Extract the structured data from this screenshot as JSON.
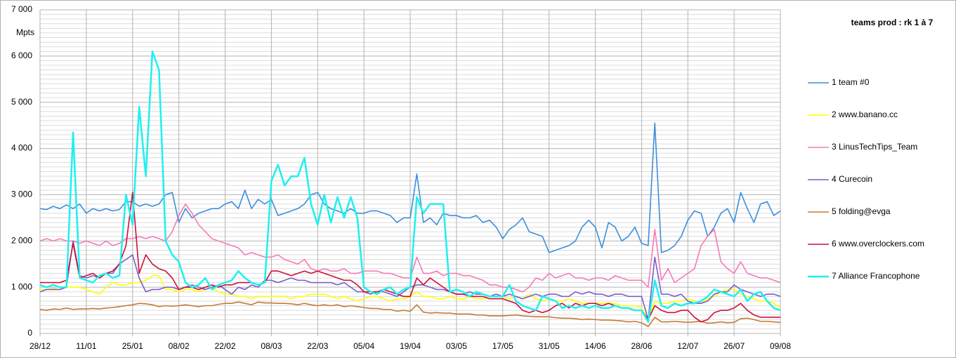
{
  "chart_data": {
    "type": "line",
    "title": "teams prod :  rk 1 à 7",
    "y_label": "Mpts",
    "categories": [
      "28/12",
      null,
      null,
      null,
      null,
      null,
      null,
      "11/01",
      null,
      null,
      null,
      null,
      null,
      null,
      "25/01",
      null,
      null,
      null,
      null,
      null,
      null,
      "08/02",
      null,
      null,
      null,
      null,
      null,
      null,
      "22/02",
      null,
      null,
      null,
      null,
      null,
      null,
      "08/03",
      null,
      null,
      null,
      null,
      null,
      null,
      "22/03",
      null,
      null,
      null,
      null,
      null,
      null,
      "05/04",
      null,
      null,
      null,
      null,
      null,
      null,
      "19/04",
      null,
      null,
      null,
      null,
      null,
      null,
      "03/05",
      null,
      null,
      null,
      null,
      null,
      null,
      "17/05",
      null,
      null,
      null,
      null,
      null,
      null,
      "31/05",
      null,
      null,
      null,
      null,
      null,
      null,
      "14/06",
      null,
      null,
      null,
      null,
      null,
      null,
      "28/06",
      null,
      null,
      null,
      null,
      null,
      null,
      "12/07",
      null,
      null,
      null,
      null,
      null,
      null,
      "26/07",
      null,
      null,
      null,
      null,
      null,
      null,
      "09/08"
    ],
    "ylim": [
      0,
      7000
    ],
    "yticks": [
      0,
      {
        "value": 1000,
        "label": "1 000"
      },
      {
        "value": 2000,
        "label": "2 000"
      },
      {
        "value": 3000,
        "label": "3 000"
      },
      {
        "value": 4000,
        "label": "4 000"
      },
      {
        "value": 5000,
        "label": "5 000"
      },
      {
        "value": 6000,
        "label": "6 000"
      },
      {
        "value": 7000,
        "label": "7 000"
      }
    ],
    "grid": true,
    "legend": "right",
    "series": [
      {
        "name": "1 team #0",
        "color": "#3c8fdc",
        "values": [
          2700,
          2680,
          2750,
          2700,
          2780,
          2700,
          2800,
          2600,
          2700,
          2650,
          2700,
          2650,
          2680,
          2850,
          2850,
          2750,
          2800,
          2750,
          2800,
          3000,
          3050,
          2400,
          2700,
          2500,
          2600,
          2650,
          2700,
          2700,
          2800,
          2850,
          2700,
          3100,
          2700,
          2900,
          2800,
          2900,
          2550,
          2600,
          2650,
          2700,
          2800,
          3000,
          3050,
          2800,
          2700,
          2650,
          2600,
          2700,
          2600,
          2600,
          2650,
          2650,
          2600,
          2550,
          2400,
          2500,
          2500,
          3450,
          2400,
          2500,
          2350,
          2600,
          2550,
          2550,
          2500,
          2500,
          2550,
          2400,
          2450,
          2300,
          2050,
          2250,
          2350,
          2500,
          2200,
          2150,
          2100,
          1750,
          1800,
          1850,
          1900,
          2000,
          2300,
          2450,
          2300,
          1850,
          2400,
          2300,
          2000,
          2100,
          2300,
          1950,
          1900,
          4550,
          1750,
          1800,
          1900,
          2100,
          2450,
          2650,
          2600,
          2100,
          2300,
          2600,
          2700,
          2400,
          3050,
          2700,
          2400,
          2800,
          2850,
          2550,
          2650
        ]
      },
      {
        "name": "2 www.banano.cc",
        "color": "#ffff00",
        "values": [
          950,
          950,
          980,
          950,
          1000,
          1000,
          1000,
          950,
          900,
          850,
          1000,
          1100,
          1050,
          1050,
          1100,
          1100,
          1150,
          1250,
          1250,
          950,
          950,
          900,
          950,
          950,
          900,
          950,
          1000,
          900,
          850,
          850,
          800,
          800,
          750,
          800,
          800,
          800,
          800,
          800,
          750,
          800,
          800,
          850,
          850,
          850,
          800,
          750,
          800,
          750,
          700,
          750,
          800,
          800,
          750,
          700,
          750,
          750,
          800,
          900,
          800,
          800,
          750,
          750,
          800,
          750,
          750,
          800,
          750,
          750,
          800,
          800,
          800,
          750,
          800,
          750,
          850,
          750,
          700,
          750,
          700,
          700,
          750,
          700,
          650,
          650,
          650,
          650,
          650,
          650,
          600,
          600,
          600,
          550,
          300,
          700,
          650,
          650,
          700,
          700,
          750,
          700,
          650,
          750,
          800,
          900,
          950,
          950,
          850,
          800,
          750,
          700,
          700,
          650,
          550
        ]
      },
      {
        "name": "3 LinusTechTips_Team",
        "color": "#f779b7",
        "values": [
          2000,
          2050,
          2000,
          2050,
          2000,
          2000,
          1950,
          2000,
          1950,
          1900,
          2000,
          1900,
          1950,
          2050,
          2050,
          2100,
          2050,
          2100,
          2050,
          2000,
          2200,
          2550,
          2800,
          2600,
          2350,
          2200,
          2050,
          2000,
          1950,
          1900,
          1850,
          1700,
          1750,
          1700,
          1650,
          1650,
          1700,
          1600,
          1550,
          1500,
          1600,
          1400,
          1350,
          1400,
          1350,
          1350,
          1400,
          1300,
          1300,
          1350,
          1350,
          1350,
          1300,
          1300,
          1250,
          1200,
          1200,
          1650,
          1300,
          1300,
          1350,
          1250,
          1300,
          1300,
          1250,
          1250,
          1200,
          1150,
          1050,
          1050,
          1000,
          1000,
          950,
          900,
          1000,
          1200,
          1150,
          1300,
          1200,
          1250,
          1300,
          1200,
          1200,
          1150,
          1200,
          1200,
          1150,
          1250,
          1200,
          1150,
          1150,
          1150,
          1000,
          2250,
          1150,
          1400,
          1100,
          1200,
          1300,
          1400,
          1900,
          2100,
          2250,
          1550,
          1400,
          1300,
          1550,
          1300,
          1250,
          1200,
          1200,
          1150,
          1100
        ]
      },
      {
        "name": "4 Curecoin",
        "color": "#7a5fcc",
        "values": [
          900,
          950,
          950,
          950,
          1000,
          2000,
          1250,
          1200,
          1250,
          1200,
          1300,
          1300,
          1500,
          1600,
          1700,
          1200,
          900,
          950,
          950,
          1000,
          1000,
          950,
          1000,
          1050,
          1000,
          950,
          1000,
          1050,
          950,
          850,
          1000,
          950,
          1050,
          1000,
          1150,
          1150,
          1100,
          1150,
          1200,
          1150,
          1150,
          1100,
          1100,
          1100,
          1100,
          1050,
          1100,
          1000,
          900,
          900,
          850,
          900,
          900,
          850,
          800,
          900,
          1000,
          1050,
          1050,
          1000,
          950,
          950,
          900,
          850,
          850,
          900,
          850,
          850,
          800,
          850,
          800,
          850,
          800,
          750,
          800,
          850,
          800,
          850,
          850,
          800,
          800,
          900,
          850,
          900,
          850,
          850,
          800,
          850,
          850,
          800,
          800,
          800,
          300,
          1650,
          850,
          850,
          800,
          850,
          700,
          650,
          650,
          700,
          850,
          900,
          900,
          1050,
          950,
          900,
          850,
          800,
          850,
          850,
          800
        ]
      },
      {
        "name": "5 folding@evga",
        "color": "#c47a36",
        "values": [
          520,
          500,
          530,
          520,
          550,
          520,
          530,
          530,
          540,
          530,
          550,
          560,
          580,
          600,
          620,
          650,
          640,
          620,
          580,
          600,
          590,
          600,
          620,
          600,
          580,
          600,
          600,
          630,
          650,
          650,
          680,
          650,
          620,
          680,
          660,
          660,
          650,
          650,
          640,
          620,
          650,
          620,
          600,
          620,
          600,
          620,
          580,
          600,
          580,
          560,
          540,
          540,
          520,
          520,
          480,
          500,
          480,
          620,
          460,
          440,
          450,
          440,
          440,
          420,
          420,
          420,
          400,
          400,
          380,
          380,
          380,
          390,
          400,
          380,
          370,
          360,
          360,
          360,
          340,
          330,
          330,
          320,
          300,
          310,
          300,
          290,
          290,
          280,
          270,
          250,
          260,
          230,
          150,
          350,
          250,
          250,
          260,
          250,
          240,
          250,
          260,
          220,
          230,
          250,
          230,
          240,
          320,
          330,
          300,
          260,
          260,
          250,
          240
        ]
      },
      {
        "name": "6 www.overclockers.com",
        "color": "#cc1038",
        "values": [
          1100,
          1100,
          1100,
          1100,
          1150,
          1950,
          1200,
          1250,
          1300,
          1200,
          1300,
          1350,
          1500,
          1900,
          3050,
          1300,
          1700,
          1500,
          1400,
          1350,
          1200,
          950,
          1000,
          1000,
          950,
          1000,
          1050,
          1000,
          1050,
          1050,
          1100,
          1100,
          1100,
          1050,
          1100,
          1350,
          1350,
          1300,
          1250,
          1300,
          1350,
          1300,
          1350,
          1300,
          1250,
          1200,
          1150,
          1150,
          1050,
          900,
          900,
          900,
          950,
          900,
          850,
          800,
          800,
          1200,
          1050,
          1200,
          1100,
          1000,
          900,
          850,
          850,
          800,
          800,
          800,
          750,
          750,
          750,
          700,
          650,
          500,
          450,
          500,
          450,
          500,
          600,
          650,
          550,
          650,
          600,
          650,
          650,
          600,
          650,
          600,
          550,
          550,
          500,
          500,
          300,
          600,
          500,
          450,
          450,
          500,
          500,
          350,
          250,
          300,
          450,
          500,
          500,
          550,
          650,
          500,
          400,
          350,
          350,
          350,
          350
        ]
      },
      {
        "name": "7 Alliance Francophone",
        "color": "#1ef0f0",
        "values": [
          1050,
          1000,
          1050,
          1000,
          1000,
          4350,
          1200,
          1150,
          1100,
          1250,
          1300,
          1200,
          1250,
          3000,
          2350,
          4900,
          3400,
          6100,
          5700,
          2000,
          1700,
          1550,
          1100,
          1000,
          1050,
          1200,
          950,
          1050,
          1100,
          1150,
          1350,
          1200,
          1100,
          1050,
          1100,
          3300,
          3650,
          3200,
          3400,
          3400,
          3800,
          2800,
          2350,
          3000,
          2400,
          2950,
          2500,
          2950,
          2500,
          1000,
          900,
          850,
          950,
          1000,
          850,
          950,
          1000,
          2950,
          2600,
          2800,
          2800,
          2800,
          900,
          950,
          900,
          800,
          900,
          850,
          800,
          800,
          800,
          1050,
          700,
          600,
          550,
          500,
          800,
          750,
          700,
          550,
          600,
          550,
          600,
          550,
          600,
          550,
          550,
          600,
          550,
          550,
          500,
          500,
          250,
          1150,
          600,
          550,
          650,
          600,
          650,
          650,
          700,
          800,
          950,
          900,
          850,
          800,
          950,
          700,
          850,
          900,
          700,
          550,
          500
        ]
      }
    ]
  }
}
